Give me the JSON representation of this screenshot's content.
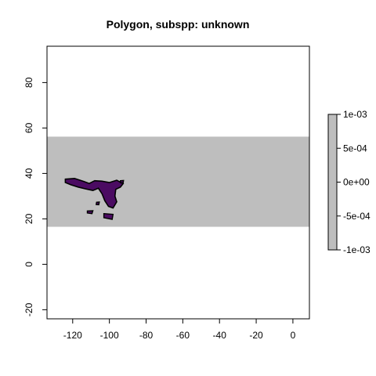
{
  "title": "Polygon, subspp: unknown",
  "colors": {
    "band": "#bebebe",
    "polygon_fill": "#4b0b62",
    "polygon_outline": "#000000",
    "frame": "#000000",
    "background": "#ffffff"
  },
  "chart_data": {
    "type": "map",
    "title": "Polygon, subspp: unknown",
    "xlim": [
      -134,
      9
    ],
    "ylim": [
      -24,
      96
    ],
    "x_ticks": [
      -120,
      -100,
      -80,
      -60,
      -40,
      -20,
      0
    ],
    "y_ticks": [
      -20,
      0,
      20,
      40,
      60,
      80
    ],
    "x_tick_labels": [
      "-120",
      "-100",
      "-80",
      "-60",
      "-40",
      "-20",
      "0"
    ],
    "y_tick_labels": [
      "-20",
      "0",
      "20",
      "40",
      "60",
      "80"
    ],
    "raster_band": {
      "ymin": 16.5,
      "ymax": 56.2,
      "value": 0
    },
    "legend": {
      "position": "right",
      "range": [
        -0.001,
        0.001
      ],
      "labels": [
        "1e-03",
        "5e-04",
        "0e+00",
        "-5e-04",
        "-1e-03"
      ]
    },
    "polygon_lonlat": [
      [
        -124,
        37.5
      ],
      [
        -119,
        37.8
      ],
      [
        -114,
        36.5
      ],
      [
        -111,
        35.6
      ],
      [
        -108,
        36.8
      ],
      [
        -104,
        36.6
      ],
      [
        -100,
        36.0
      ],
      [
        -96,
        37.0
      ],
      [
        -92.5,
        35.5
      ],
      [
        -94,
        34.0
      ],
      [
        -96.5,
        33.0
      ],
      [
        -97,
        30.0
      ],
      [
        -96,
        27.5
      ],
      [
        -98,
        24.8
      ],
      [
        -100.5,
        25.5
      ],
      [
        -102.5,
        28.0
      ],
      [
        -104,
        31.0
      ],
      [
        -106,
        33.5
      ],
      [
        -109,
        32.5
      ],
      [
        -113,
        33.2
      ],
      [
        -117,
        34.0
      ],
      [
        -121,
        35.0
      ],
      [
        -124,
        36.0
      ]
    ],
    "small_patches_lonlat": [
      [
        [
          -112,
          23.5
        ],
        [
          -109,
          23.6
        ],
        [
          -109.5,
          22.3
        ],
        [
          -112,
          22.6
        ]
      ],
      [
        [
          -103,
          22.3
        ],
        [
          -98,
          22.0
        ],
        [
          -98.5,
          19.8
        ],
        [
          -103,
          20.5
        ]
      ],
      [
        [
          -107,
          27.3
        ],
        [
          -105.5,
          27.4
        ],
        [
          -105.8,
          26.2
        ],
        [
          -107.2,
          26.3
        ]
      ],
      [
        [
          -94,
          36.8
        ],
        [
          -92.3,
          36.9
        ],
        [
          -92.5,
          35.8
        ],
        [
          -94,
          35.9
        ]
      ]
    ]
  }
}
